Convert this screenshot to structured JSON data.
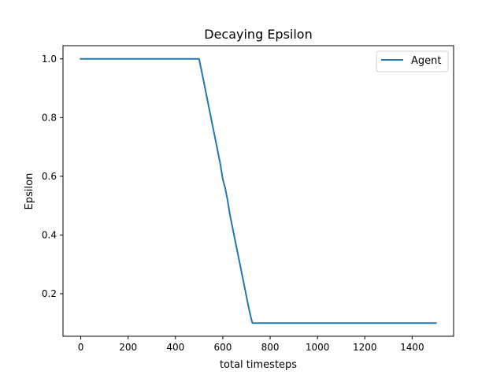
{
  "chart_data": {
    "type": "line",
    "title": "Decaying Epsilon",
    "xlabel": "total timesteps",
    "ylabel": "Epsilon",
    "xlim": [
      -75,
      1575
    ],
    "ylim": [
      0.055,
      1.045
    ],
    "xticks": [
      0,
      200,
      400,
      600,
      800,
      1000,
      1200,
      1400
    ],
    "xtick_labels": [
      "0",
      "200",
      "400",
      "600",
      "800",
      "1000",
      "1200",
      "1400"
    ],
    "yticks": [
      0.2,
      0.4,
      0.6,
      0.8,
      1.0
    ],
    "ytick_labels": [
      "0.2",
      "0.4",
      "0.6",
      "0.8",
      "1.0"
    ],
    "grid": false,
    "legend_position": "top-right",
    "series": [
      {
        "name": "Agent",
        "color": "#1f77b4",
        "x": [
          0,
          500,
          510,
          520,
          530,
          540,
          550,
          560,
          570,
          580,
          590,
          600,
          610,
          620,
          630,
          640,
          650,
          660,
          670,
          680,
          690,
          700,
          710,
          720,
          725,
          730,
          1500
        ],
        "y": [
          1.0,
          1.0,
          0.96,
          0.92,
          0.88,
          0.84,
          0.8,
          0.76,
          0.72,
          0.68,
          0.64,
          0.59,
          0.56,
          0.52,
          0.47,
          0.43,
          0.39,
          0.35,
          0.31,
          0.27,
          0.23,
          0.19,
          0.15,
          0.115,
          0.1,
          0.1,
          0.1
        ]
      }
    ]
  }
}
